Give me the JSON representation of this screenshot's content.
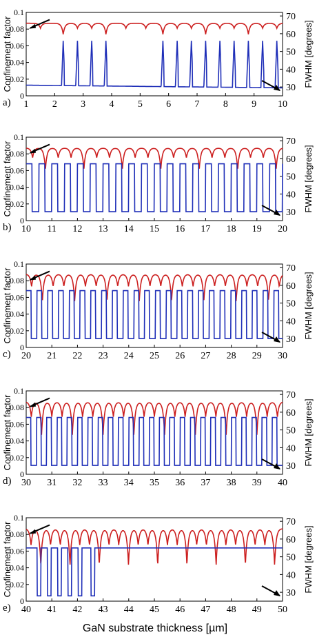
{
  "colors": {
    "confinement": "#cc1f1f",
    "fwhm": "#1f2fb8",
    "axis": "#000000"
  },
  "left_axis_label": "Confinement factor",
  "right_axis_label": "FWHM [degrees]",
  "x_axis_label": "GaN substrate thickness [µm]",
  "chart_data": [
    {
      "type": "line",
      "panel": "a)",
      "xlim": [
        1,
        10
      ],
      "ylim_left": [
        0,
        0.1
      ],
      "ylim_right": [
        25,
        72
      ],
      "xticks": [
        "1",
        "2",
        "3",
        "4",
        "5",
        "6",
        "7",
        "8",
        "9",
        "10"
      ],
      "yticks_left": [
        "0",
        "0.02",
        "0.04",
        "0.06",
        "0.08",
        "0.1"
      ],
      "yticks_right": [
        "30",
        "40",
        "50",
        "60",
        "70"
      ],
      "series": [
        {
          "axis": "left",
          "base": 0.087,
          "dips": [
            1.5,
            2.3,
            2.8,
            3.3,
            3.8,
            4.5,
            5.2,
            5.8,
            6.3,
            6.8,
            7.3,
            7.8,
            8.3,
            8.8,
            9.3,
            9.8
          ],
          "dip_depth": 0.006
        },
        {
          "axis": "right",
          "base": 31,
          "peaks": [
            2.3,
            2.8,
            3.3,
            3.8,
            5.8,
            6.3,
            6.8,
            7.3,
            7.8,
            8.3,
            8.8,
            9.3,
            9.8
          ],
          "peak_value": 56
        }
      ]
    },
    {
      "type": "line",
      "panel": "b)",
      "xlim": [
        10,
        20
      ],
      "ylim_left": [
        0,
        0.1
      ],
      "ylim_right": [
        25,
        72
      ],
      "xticks": [
        "10",
        "11",
        "12",
        "13",
        "14",
        "15",
        "16",
        "17",
        "18",
        "19",
        "20"
      ],
      "yticks_left": [
        "0",
        "0.02",
        "0.04",
        "0.06",
        "0.08",
        "0.1"
      ],
      "yticks_right": [
        "30",
        "40",
        "50",
        "60",
        "70"
      ],
      "series": [
        {
          "axis": "left",
          "base": 0.087,
          "period": 0.5,
          "dip_depth": 0.012
        },
        {
          "axis": "right",
          "base": 30,
          "period": 0.5,
          "peak_value": 57
        }
      ]
    },
    {
      "type": "line",
      "panel": "c)",
      "xlim": [
        20,
        30
      ],
      "ylim_left": [
        0,
        0.1
      ],
      "ylim_right": [
        25,
        72
      ],
      "xticks": [
        "20",
        "21",
        "22",
        "23",
        "24",
        "25",
        "26",
        "27",
        "28",
        "29",
        "30"
      ],
      "yticks_left": [
        "0",
        "0.02",
        "0.04",
        "0.06",
        "0.08",
        "0.1"
      ],
      "yticks_right": [
        "30",
        "40",
        "50",
        "60",
        "70"
      ],
      "series": [
        {
          "axis": "left",
          "base": 0.088,
          "period": 0.42,
          "dip_depth": 0.015
        },
        {
          "axis": "right",
          "base": 30,
          "period": 0.42,
          "peak_value": 57
        }
      ]
    },
    {
      "type": "line",
      "panel": "d)",
      "xlim": [
        30,
        40
      ],
      "ylim_left": [
        0,
        0.1
      ],
      "ylim_right": [
        25,
        72
      ],
      "xticks": [
        "30",
        "31",
        "32",
        "33",
        "34",
        "35",
        "36",
        "37",
        "38",
        "39",
        "40"
      ],
      "yticks_left": [
        "0",
        "0.02",
        "0.04",
        "0.06",
        "0.08",
        "0.1"
      ],
      "yticks_right": [
        "30",
        "40",
        "50",
        "60",
        "70"
      ],
      "series": [
        {
          "axis": "left",
          "base": 0.087,
          "period": 0.4,
          "dip_depth": 0.018
        },
        {
          "axis": "right",
          "base": 30,
          "period": 0.4,
          "peak_value": 57
        }
      ]
    },
    {
      "type": "line",
      "panel": "e)",
      "xlim": [
        40,
        50
      ],
      "ylim_left": [
        0,
        0.1
      ],
      "ylim_right": [
        25,
        72
      ],
      "xticks": [
        "40",
        "41",
        "42",
        "43",
        "44",
        "45",
        "46",
        "47",
        "48",
        "49",
        "50"
      ],
      "yticks_left": [
        "0",
        "0.02",
        "0.04",
        "0.06",
        "0.08",
        "0.1"
      ],
      "yticks_right": [
        "30",
        "40",
        "50",
        "60",
        "70"
      ],
      "series": [
        {
          "axis": "left",
          "base": 0.087,
          "period": 0.38,
          "dip_depth": 0.02
        },
        {
          "axis": "right",
          "base": 55,
          "drops": [
            40.5,
            40.9,
            41.3,
            41.7,
            42.1,
            42.6
          ],
          "drop_value": 28
        }
      ]
    }
  ]
}
